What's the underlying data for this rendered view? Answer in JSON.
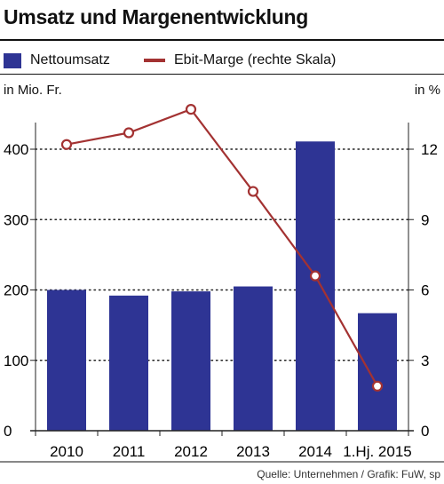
{
  "title": "Umsatz und Margenentwicklung",
  "legend": {
    "bar_label": "Nettoumsatz",
    "line_label": "Ebit-Marge (rechte Skala)"
  },
  "units": {
    "left": "in Mio. Fr.",
    "right": "in %"
  },
  "source": "Quelle: Unternehmen / Grafik: FuW, sp",
  "colors": {
    "bar": "#2e3494",
    "line": "#a33232",
    "marker_fill": "#ffffff"
  },
  "chart_data": {
    "type": "bar",
    "title": "Umsatz und Margenentwicklung",
    "categories": [
      "2010",
      "2011",
      "2012",
      "2013",
      "2014",
      "1.Hj. 2015"
    ],
    "series": [
      {
        "name": "Nettoumsatz",
        "type": "bar",
        "axis": "left",
        "values": [
          200,
          192,
          198,
          205,
          411,
          167
        ]
      },
      {
        "name": "Ebit-Marge (rechte Skala)",
        "type": "line",
        "axis": "right",
        "values": [
          12.2,
          12.7,
          13.7,
          10.2,
          6.6,
          1.9
        ]
      }
    ],
    "y_left": {
      "label": "in Mio. Fr.",
      "ylim": [
        0,
        400
      ],
      "ticks": [
        0,
        100,
        200,
        300,
        400
      ]
    },
    "y_right": {
      "label": "in %",
      "ylim": [
        0,
        12
      ],
      "ticks": [
        0,
        3,
        6,
        9,
        12
      ]
    },
    "grid": "dotted horizontal",
    "legend_position": "top-left"
  }
}
